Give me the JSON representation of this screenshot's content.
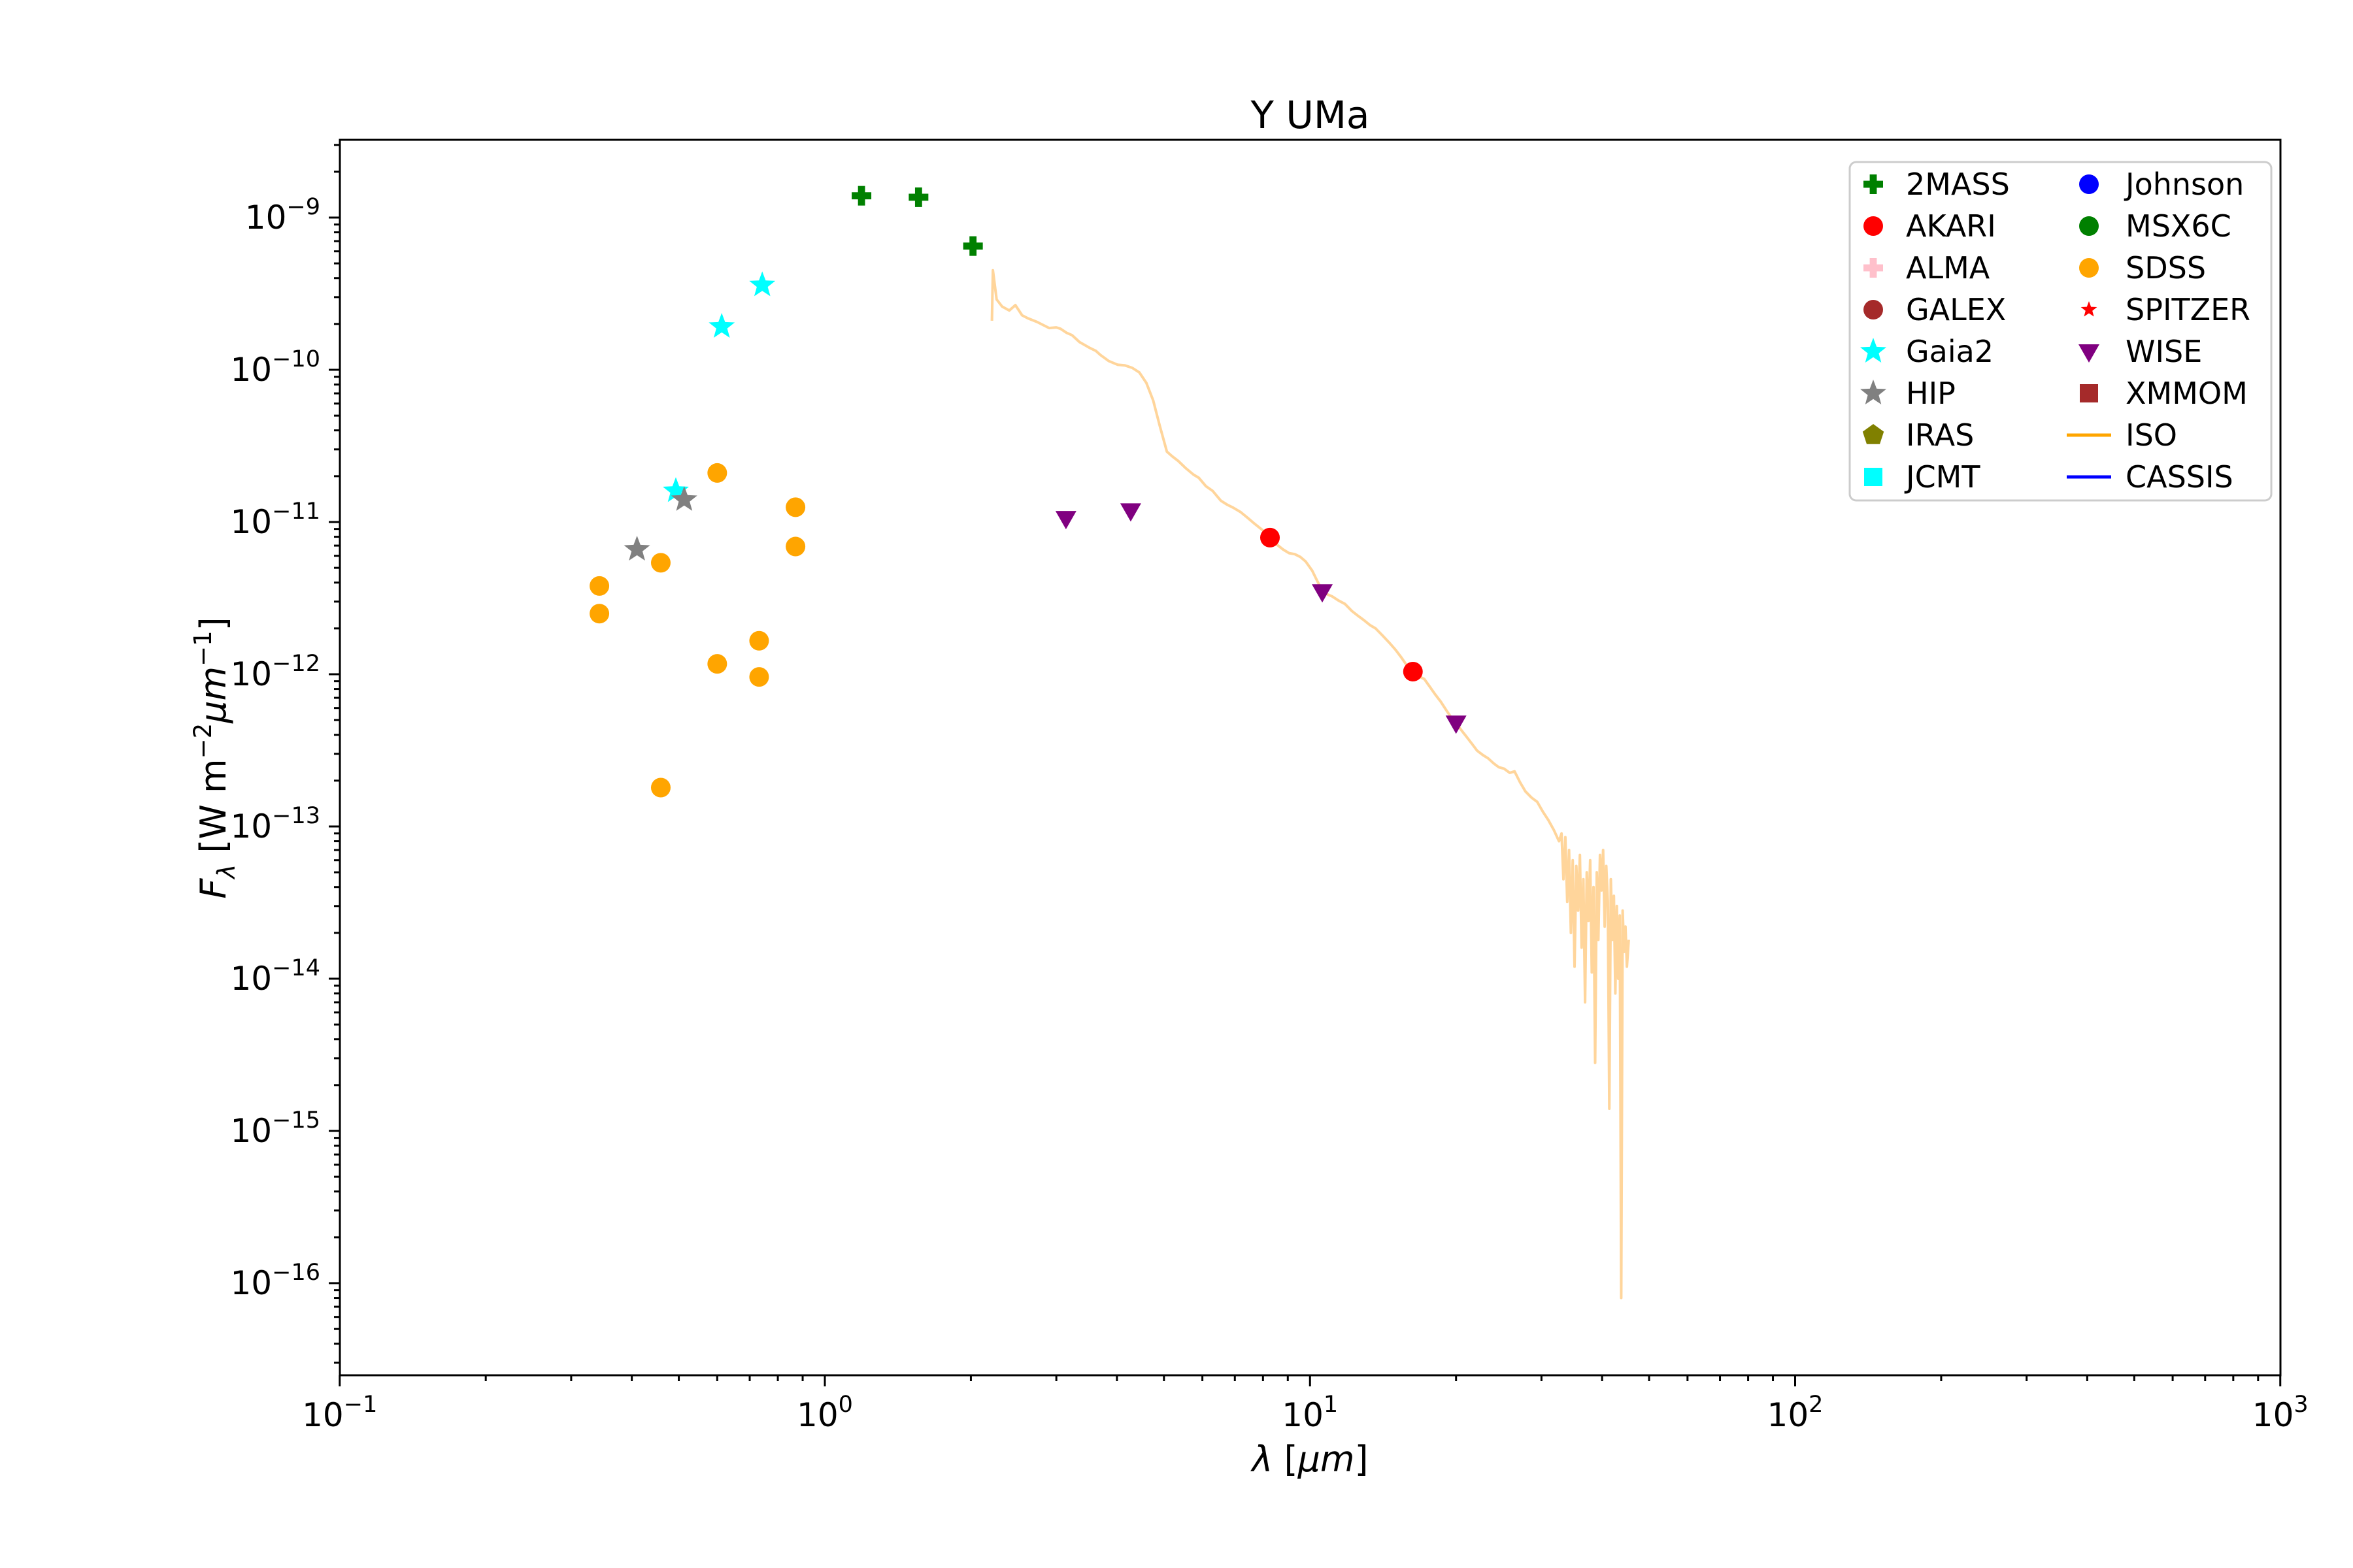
{
  "chart_data": {
    "type": "scatter",
    "title": "Y UMa",
    "xlabel_lambda": "λ",
    "xlabel_unit": "μm",
    "ylabel_F": "F",
    "ylabel_sub": "λ",
    "ylabel_unit_prefix": " [W m",
    "ylabel_exp1": "−2",
    "ylabel_mu": "μm",
    "ylabel_exp2": "−1",
    "ylabel_close": "]",
    "x_scale": "log",
    "y_scale": "log",
    "xlim": [
      0.1,
      1000
    ],
    "ylim": [
      2.48e-17,
      3.24e-09
    ],
    "x_tick_labels": [
      "10⁻¹",
      "10⁰",
      "10¹",
      "10²",
      "10³"
    ],
    "x_tick_values": [
      0.1,
      1,
      10,
      100,
      1000
    ],
    "y_tick_labels": [
      "10⁻⁹",
      "10⁻¹⁰",
      "10⁻¹¹",
      "10⁻¹²",
      "10⁻¹³",
      "10⁻¹⁴",
      "10⁻¹⁵",
      "10⁻¹⁶"
    ],
    "y_tick_exponents": [
      -9,
      -10,
      -11,
      -12,
      -13,
      -14,
      -15,
      -16
    ],
    "grid": false,
    "legend_position": "upper right",
    "legend_columns": 2,
    "series": [
      {
        "name": "2MASS",
        "marker": "plus",
        "color": "#008000",
        "points": [
          [
            1.19,
            1.39e-09
          ],
          [
            1.56,
            1.36e-09
          ],
          [
            2.02,
            6.5e-10
          ]
        ]
      },
      {
        "name": "AKARI",
        "marker": "circle",
        "color": "#ff0000",
        "points": [
          [
            8.27,
            7.9e-12
          ],
          [
            16.3,
            1.04e-12
          ]
        ]
      },
      {
        "name": "Gaia2",
        "marker": "star",
        "color": "#00ffff",
        "points": [
          [
            0.743,
            3.6e-10
          ],
          [
            0.613,
            1.92e-10
          ],
          [
            0.493,
            1.6e-11
          ]
        ]
      },
      {
        "name": "HIP",
        "marker": "star",
        "color": "#808080",
        "points": [
          [
            0.513,
            1.4e-11
          ],
          [
            0.41,
            6.6e-12
          ]
        ]
      },
      {
        "name": "SDSS",
        "marker": "circle",
        "color": "#ffa500",
        "points": [
          [
            0.343,
            3.8e-12
          ],
          [
            0.343,
            2.5e-12
          ],
          [
            0.459,
            5.4e-12
          ],
          [
            0.459,
            1.8e-13
          ],
          [
            0.6,
            2.1e-11
          ],
          [
            0.6,
            1.17e-12
          ],
          [
            0.732,
            1.66e-12
          ],
          [
            0.732,
            9.6e-13
          ],
          [
            0.87,
            1.25e-11
          ],
          [
            0.87,
            6.9e-12
          ]
        ]
      },
      {
        "name": "WISE",
        "marker": "triangle-down",
        "color": "#800080",
        "points": [
          [
            3.14,
            1.06e-11
          ],
          [
            4.27,
            1.19e-11
          ],
          [
            10.6,
            3.5e-12
          ],
          [
            20.0,
            4.8e-13
          ]
        ]
      }
    ],
    "iso_curve": {
      "name": "ISO",
      "color": "#ffd59b",
      "legend_color": "#ffa500",
      "points": [
        [
          2.21,
          2.1e-10
        ],
        [
          2.22,
          4.5e-10
        ],
        [
          2.26,
          2.9e-10
        ],
        [
          2.32,
          2.6e-10
        ],
        [
          2.4,
          2.45e-10
        ],
        [
          2.47,
          2.66e-10
        ],
        [
          2.55,
          2.28e-10
        ],
        [
          2.62,
          2.18e-10
        ],
        [
          2.74,
          2.06e-10
        ],
        [
          2.9,
          1.88e-10
        ],
        [
          3.0,
          1.9e-10
        ],
        [
          3.06,
          1.86e-10
        ],
        [
          3.15,
          1.75e-10
        ],
        [
          3.23,
          1.69e-10
        ],
        [
          3.35,
          1.52e-10
        ],
        [
          3.52,
          1.39e-10
        ],
        [
          3.62,
          1.33e-10
        ],
        [
          3.7,
          1.25e-10
        ],
        [
          3.85,
          1.14e-10
        ],
        [
          4.01,
          1.08e-10
        ],
        [
          4.15,
          1.07e-10
        ],
        [
          4.3,
          1.03e-10
        ],
        [
          4.45,
          9.6e-11
        ],
        [
          4.6,
          8.2e-11
        ],
        [
          4.75,
          6.3e-11
        ],
        [
          4.9,
          4.3e-11
        ],
        [
          5.07,
          2.9e-11
        ],
        [
          5.2,
          2.7e-11
        ],
        [
          5.35,
          2.52e-11
        ],
        [
          5.55,
          2.25e-11
        ],
        [
          5.75,
          2.05e-11
        ],
        [
          5.9,
          1.95e-11
        ],
        [
          6.1,
          1.72e-11
        ],
        [
          6.3,
          1.6e-11
        ],
        [
          6.55,
          1.38e-11
        ],
        [
          6.75,
          1.3e-11
        ],
        [
          6.95,
          1.24e-11
        ],
        [
          7.2,
          1.16e-11
        ],
        [
          7.45,
          1.06e-11
        ],
        [
          7.7,
          9.7e-12
        ],
        [
          8.0,
          8.8e-12
        ],
        [
          8.27,
          7.9e-12
        ],
        [
          8.55,
          7.1e-12
        ],
        [
          8.8,
          6.6e-12
        ],
        [
          9.05,
          6.25e-12
        ],
        [
          9.3,
          6.15e-12
        ],
        [
          9.55,
          5.9e-12
        ],
        [
          9.8,
          5.5e-12
        ],
        [
          10.1,
          4.8e-12
        ],
        [
          10.35,
          4.1e-12
        ],
        [
          10.6,
          3.55e-12
        ],
        [
          10.85,
          3.35e-12
        ],
        [
          11.1,
          3.25e-12
        ],
        [
          11.45,
          3.05e-12
        ],
        [
          11.8,
          2.9e-12
        ],
        [
          12.2,
          2.6e-12
        ],
        [
          12.6,
          2.4e-12
        ],
        [
          12.95,
          2.25e-12
        ],
        [
          13.3,
          2.1e-12
        ],
        [
          13.65,
          2e-12
        ],
        [
          14.1,
          1.8e-12
        ],
        [
          14.55,
          1.62e-12
        ],
        [
          15.0,
          1.45e-12
        ],
        [
          15.45,
          1.28e-12
        ],
        [
          15.9,
          1.12e-12
        ],
        [
          16.3,
          1.04e-12
        ],
        [
          16.75,
          9.7e-13
        ],
        [
          17.2,
          9.3e-13
        ],
        [
          17.65,
          8.3e-13
        ],
        [
          18.1,
          7.4e-13
        ],
        [
          18.6,
          6.6e-13
        ],
        [
          19.1,
          5.8e-13
        ],
        [
          19.55,
          5.2e-13
        ],
        [
          20.0,
          4.8e-13
        ],
        [
          20.5,
          4.3e-13
        ],
        [
          21.0,
          3.9e-13
        ],
        [
          21.55,
          3.5e-13
        ],
        [
          22.1,
          3.15e-13
        ],
        [
          22.7,
          2.95e-13
        ],
        [
          23.3,
          2.8e-13
        ],
        [
          23.9,
          2.6e-13
        ],
        [
          24.5,
          2.45e-13
        ],
        [
          25.1,
          2.4e-13
        ],
        [
          25.8,
          2.25e-13
        ],
        [
          26.4,
          2.3e-13
        ],
        [
          27.1,
          1.95e-13
        ],
        [
          27.8,
          1.7e-13
        ],
        [
          28.6,
          1.55e-13
        ],
        [
          29.4,
          1.45e-13
        ],
        [
          30.2,
          1.25e-13
        ],
        [
          31.0,
          1.1e-13
        ],
        [
          31.8,
          9.5e-14
        ],
        [
          32.6,
          8e-14
        ],
        [
          33.0,
          9e-14
        ],
        [
          33.3,
          4.5e-14
        ],
        [
          33.6,
          8.5e-14
        ],
        [
          33.9,
          3.2e-14
        ],
        [
          34.2,
          7e-14
        ],
        [
          34.5,
          2e-14
        ],
        [
          34.8,
          6e-14
        ],
        [
          35.1,
          1.2e-14
        ],
        [
          35.4,
          5.5e-14
        ],
        [
          35.7,
          2.8e-14
        ],
        [
          36.0,
          6.5e-14
        ],
        [
          36.3,
          1.6e-14
        ],
        [
          36.6,
          4.5e-14
        ],
        [
          36.9,
          7e-15
        ],
        [
          37.2,
          5e-14
        ],
        [
          37.5,
          2.4e-14
        ],
        [
          37.8,
          6e-14
        ],
        [
          38.1,
          1.1e-14
        ],
        [
          38.4,
          4e-14
        ],
        [
          38.7,
          2.8e-15
        ],
        [
          39.0,
          5e-14
        ],
        [
          39.3,
          1.8e-14
        ],
        [
          39.6,
          6.5e-14
        ],
        [
          39.9,
          3.8e-14
        ],
        [
          40.2,
          7e-14
        ],
        [
          40.5,
          2.2e-14
        ],
        [
          40.8,
          5.5e-14
        ],
        [
          41.1,
          3.2e-14
        ],
        [
          41.4,
          1.4e-15
        ],
        [
          41.7,
          4.5e-14
        ],
        [
          42.0,
          1.8e-14
        ],
        [
          42.3,
          3.5e-14
        ],
        [
          42.6,
          8e-15
        ],
        [
          42.9,
          3e-14
        ],
        [
          43.2,
          1e-14
        ],
        [
          43.5,
          2.6e-14
        ],
        [
          43.8,
          8e-17
        ],
        [
          44.1,
          2.8e-14
        ],
        [
          44.4,
          1.5e-14
        ],
        [
          44.7,
          2.2e-14
        ],
        [
          45.0,
          1.2e-14
        ],
        [
          45.4,
          1.8e-14
        ]
      ]
    },
    "legend_entries": [
      {
        "label": "2MASS",
        "marker": "plus",
        "color": "#008000"
      },
      {
        "label": "AKARI",
        "marker": "circle",
        "color": "#ff0000"
      },
      {
        "label": "ALMA",
        "marker": "plus",
        "color": "#ffc0cb"
      },
      {
        "label": "GALEX",
        "marker": "circle",
        "color": "#a52a2a"
      },
      {
        "label": "Gaia2",
        "marker": "star",
        "color": "#00ffff"
      },
      {
        "label": "HIP",
        "marker": "star",
        "color": "#808080"
      },
      {
        "label": "IRAS",
        "marker": "pentagon",
        "color": "#808000"
      },
      {
        "label": "JCMT",
        "marker": "square",
        "color": "#00ffff"
      },
      {
        "label": "Johnson",
        "marker": "circle",
        "color": "#0000ff"
      },
      {
        "label": "MSX6C",
        "marker": "circle",
        "color": "#008000"
      },
      {
        "label": "SDSS",
        "marker": "circle",
        "color": "#ffa500"
      },
      {
        "label": "SPITZER",
        "marker": "star-small",
        "color": "#ff0000"
      },
      {
        "label": "WISE",
        "marker": "triangle-down",
        "color": "#800080"
      },
      {
        "label": "XMMOM",
        "marker": "square",
        "color": "#a52a2a"
      },
      {
        "label": "ISO",
        "marker": "line",
        "color": "#ffa500"
      },
      {
        "label": "CASSIS",
        "marker": "line",
        "color": "#0000ff"
      }
    ]
  }
}
